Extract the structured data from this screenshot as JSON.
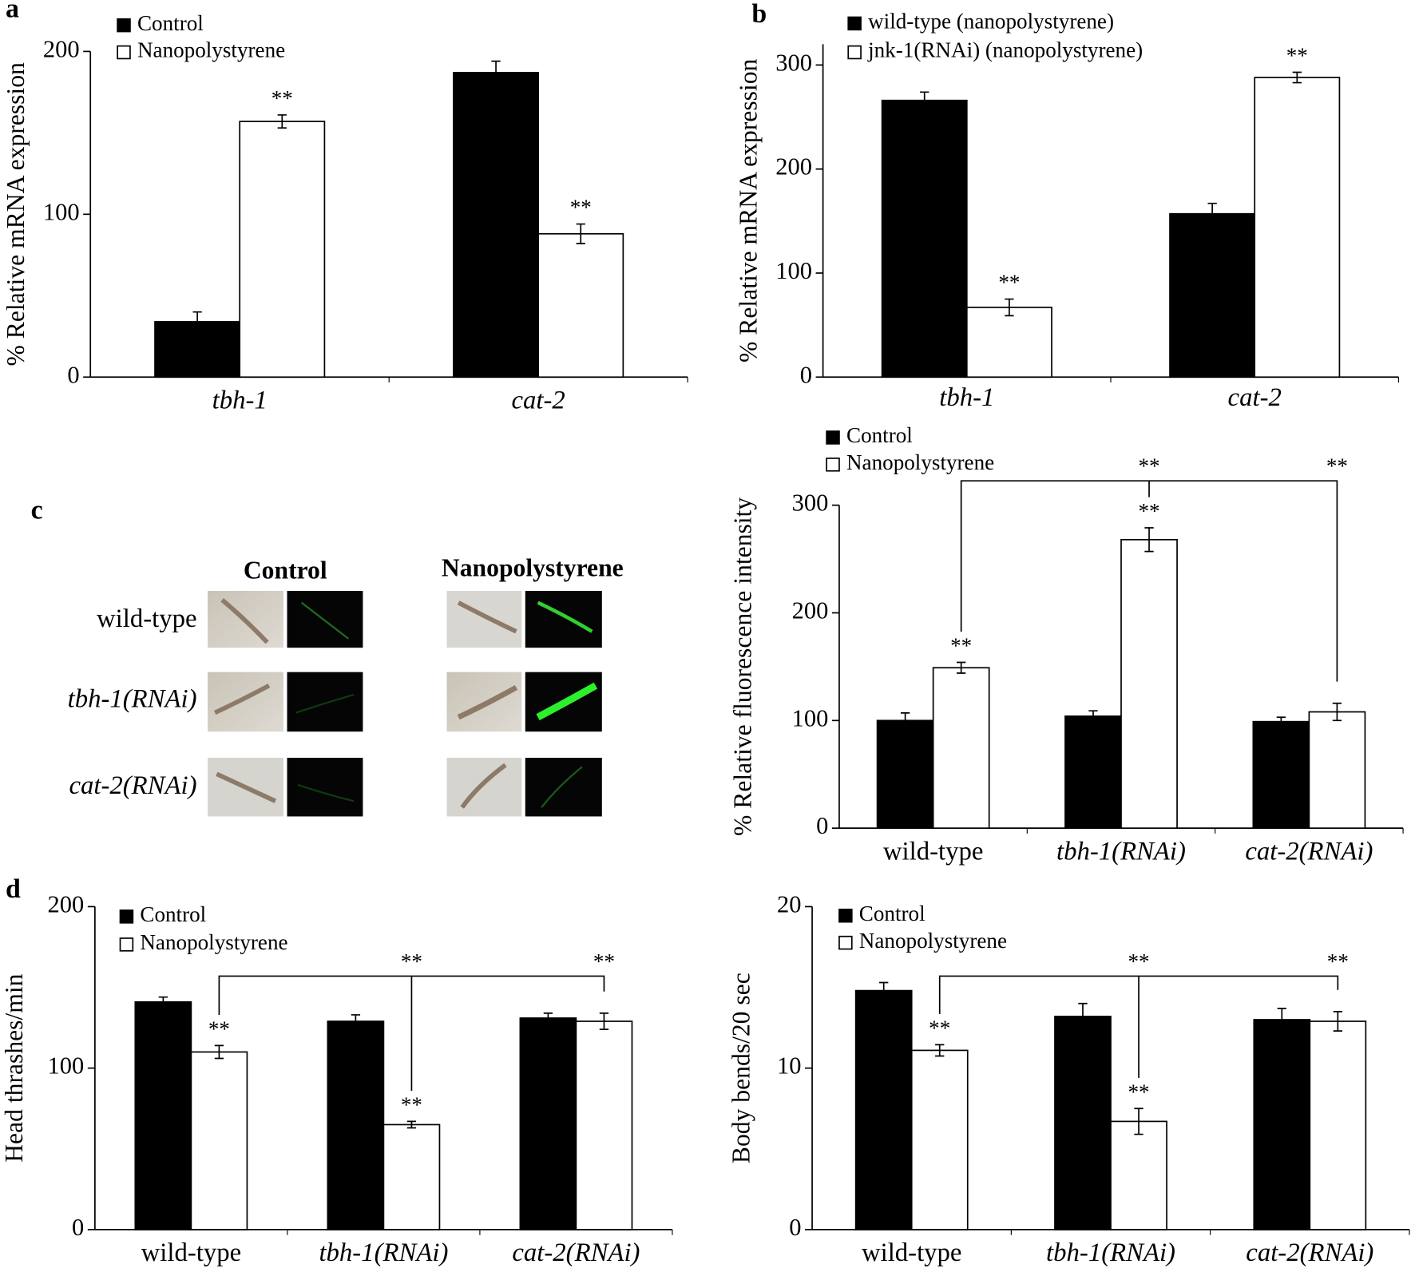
{
  "panel_labels": [
    "a",
    "b",
    "c",
    "d"
  ],
  "panel_c_images": {
    "col_labels": [
      "Control",
      "Nanopolystyrene"
    ],
    "row_labels": [
      "wild-type",
      "tbh-1(RNAi)",
      "cat-2(RNAi)"
    ]
  },
  "chart_data": [
    {
      "type": "bar",
      "y_label": "% Relative mRNA expression",
      "categories": [
        "tbh-1",
        "cat-2"
      ],
      "category_style": [
        "italic",
        "italic"
      ],
      "ylim": [
        0,
        200
      ],
      "yticks": [
        0,
        100,
        200
      ],
      "series": [
        {
          "name": "Control",
          "color": "#000000",
          "values": [
            34,
            187
          ],
          "errors": [
            6,
            7
          ]
        },
        {
          "name": "Nanopolystyrene",
          "color": "#ffffff",
          "values": [
            157,
            88
          ],
          "errors": [
            4,
            6
          ],
          "stars": [
            "**",
            "**"
          ]
        }
      ]
    },
    {
      "type": "bar",
      "y_label": "% Relative mRNA expression",
      "categories": [
        "tbh-1",
        "cat-2"
      ],
      "category_style": [
        "italic",
        "italic"
      ],
      "ylim": [
        0,
        320
      ],
      "yticks": [
        0,
        100,
        200,
        300
      ],
      "series": [
        {
          "name": "wild-type (nanopolystyrene)",
          "color": "#000000",
          "values": [
            266,
            157
          ],
          "errors": [
            8,
            10
          ]
        },
        {
          "name": "jnk-1(RNAi) (nanopolystyrene)",
          "color": "#ffffff",
          "values": [
            67,
            288
          ],
          "errors": [
            8,
            5
          ],
          "stars": [
            "**",
            "**"
          ]
        }
      ]
    },
    {
      "type": "bar",
      "y_label": "% Relative fluorescence intensity",
      "categories": [
        "wild-type",
        "tbh-1(RNAi)",
        "cat-2(RNAi)"
      ],
      "category_style": [
        "normal",
        "italic",
        "italic"
      ],
      "ylim": [
        0,
        300
      ],
      "yticks": [
        0,
        100,
        200,
        300
      ],
      "series": [
        {
          "name": "Control",
          "color": "#000000",
          "values": [
            100,
            104,
            99
          ],
          "errors": [
            7,
            5,
            4
          ]
        },
        {
          "name": "Nanopolystyrene",
          "color": "#ffffff",
          "values": [
            149,
            268,
            108
          ],
          "errors": [
            5,
            11,
            8
          ],
          "stars": [
            "**",
            "**",
            null
          ]
        }
      ],
      "comparisons": [
        "**",
        "**"
      ]
    },
    {
      "type": "bar",
      "y_label": "Head thrashes/min",
      "categories": [
        "wild-type",
        "tbh-1(RNAi)",
        "cat-2(RNAi)"
      ],
      "category_style": [
        "normal",
        "italic",
        "italic"
      ],
      "ylim": [
        0,
        200
      ],
      "yticks": [
        0,
        100,
        200
      ],
      "series": [
        {
          "name": "Control",
          "color": "#000000",
          "values": [
            141,
            129,
            131
          ],
          "errors": [
            3,
            4,
            3
          ]
        },
        {
          "name": "Nanopolystyrene",
          "color": "#ffffff",
          "values": [
            110,
            65,
            129
          ],
          "errors": [
            4,
            2,
            5
          ],
          "stars": [
            "**",
            "**",
            null
          ]
        }
      ],
      "comparisons": [
        "**",
        "**"
      ]
    },
    {
      "type": "bar",
      "y_label": "Body bends/20 sec",
      "categories": [
        "wild-type",
        "tbh-1(RNAi)",
        "cat-2(RNAi)"
      ],
      "category_style": [
        "normal",
        "italic",
        "italic"
      ],
      "ylim": [
        0,
        20
      ],
      "yticks": [
        0,
        10,
        20
      ],
      "series": [
        {
          "name": "Control",
          "color": "#000000",
          "values": [
            14.8,
            13.2,
            13.0
          ],
          "errors": [
            0.5,
            0.8,
            0.7
          ]
        },
        {
          "name": "Nanopolystyrene",
          "color": "#ffffff",
          "values": [
            11.1,
            6.7,
            12.9
          ],
          "errors": [
            0.35,
            0.8,
            0.6
          ],
          "stars": [
            "**",
            "**",
            null
          ]
        }
      ],
      "comparisons": [
        "**",
        "**"
      ]
    }
  ]
}
